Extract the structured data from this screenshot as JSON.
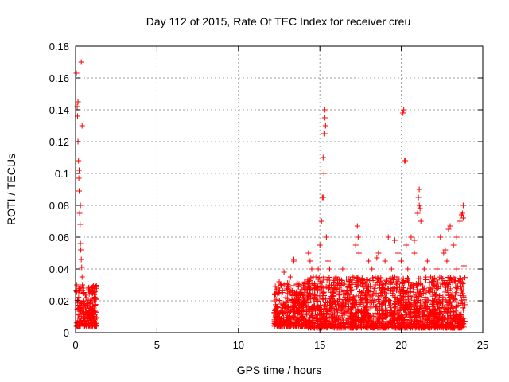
{
  "chart_data": {
    "type": "scatter",
    "title": "Day 112 of 2015, Rate Of TEC Index for receiver creu",
    "xlabel": "GPS time / hours",
    "ylabel": "ROTI / TECUs",
    "xlim": [
      0,
      25
    ],
    "ylim": [
      0,
      0.18
    ],
    "xticks": [
      "0",
      "5",
      "10",
      "15",
      "20",
      "25"
    ],
    "yticks": [
      "0",
      "0.02",
      "0.04",
      "0.06",
      "0.08",
      "0.1",
      "0.12",
      "0.14",
      "0.16",
      "0.18"
    ],
    "grid": true,
    "marker": "+",
    "color": "#ff0000",
    "series": [
      {
        "x": [
          0.05,
          0.1,
          0.12,
          0.15,
          0.18,
          0.2,
          0.22,
          0.25,
          0.28,
          0.3,
          0.32,
          0.35,
          0.38,
          0.4,
          0.42,
          0.45,
          0.48,
          0.5,
          0.55,
          0.6,
          0.7,
          0.8,
          0.9,
          1.0,
          1.1,
          1.2,
          0.08,
          0.15,
          0.22,
          0.3,
          0.35,
          0.4,
          0.5,
          0.65,
          0.75,
          0.85,
          0.95,
          1.05,
          1.15,
          1.2,
          12.2,
          12.3,
          12.4,
          12.5,
          12.6,
          12.7,
          12.8,
          12.9,
          13.0,
          13.1,
          13.2,
          13.3,
          13.4,
          13.5,
          13.6,
          13.7,
          13.8,
          13.9,
          14.0,
          14.1,
          12.5,
          12.8,
          13.1,
          13.4,
          13.7,
          14.0,
          14.3,
          14.4,
          14.5,
          14.6,
          14.7,
          14.8,
          14.9,
          15.0,
          15.1,
          15.15,
          15.2,
          15.25,
          15.3,
          15.35,
          15.4,
          15.5,
          15.6,
          15.7,
          15.8,
          15.9,
          16.0,
          16.2,
          16.4,
          16.6,
          16.8,
          17.0,
          17.2,
          17.3,
          17.4,
          17.6,
          17.8,
          18.0,
          18.2,
          18.4,
          18.6,
          18.8,
          19.0,
          19.2,
          19.4,
          19.6,
          19.8,
          20.0,
          20.1,
          20.2,
          20.3,
          20.4,
          20.6,
          20.8,
          21.0,
          21.1,
          21.2,
          21.4,
          21.6,
          21.8,
          22.0,
          22.2,
          22.4,
          22.6,
          22.8,
          23.0,
          23.2,
          23.4,
          23.6,
          23.8,
          14.5,
          15.0,
          15.5,
          16.0,
          16.5,
          17.0,
          17.5,
          18.0,
          18.5,
          19.0,
          19.5,
          20.0,
          20.5,
          21.0,
          21.5,
          22.0,
          22.5,
          23.0,
          23.5,
          15.2,
          15.25,
          15.3,
          15.3,
          20.15,
          20.25,
          21.05,
          21.1,
          21.15,
          22.9,
          23.4,
          23.7,
          23.75,
          23.8,
          23.85,
          17.35,
          19.6,
          20.8,
          22.7,
          18.5
        ],
        "y": [
          0.163,
          0.142,
          0.136,
          0.12,
          0.108,
          0.097,
          0.089,
          0.075,
          0.068,
          0.056,
          0.052,
          0.046,
          0.041,
          0.035,
          0.03,
          0.028,
          0.025,
          0.02,
          0.018,
          0.016,
          0.013,
          0.012,
          0.011,
          0.01,
          0.012,
          0.014,
          0.03,
          0.145,
          0.102,
          0.08,
          0.17,
          0.13,
          0.025,
          0.022,
          0.018,
          0.012,
          0.009,
          0.015,
          0.02,
          0.008,
          0.02,
          0.015,
          0.01,
          0.025,
          0.018,
          0.012,
          0.03,
          0.022,
          0.016,
          0.028,
          0.035,
          0.02,
          0.045,
          0.018,
          0.012,
          0.015,
          0.025,
          0.01,
          0.022,
          0.008,
          0.032,
          0.038,
          0.027,
          0.046,
          0.02,
          0.03,
          0.05,
          0.045,
          0.04,
          0.035,
          0.03,
          0.028,
          0.04,
          0.055,
          0.07,
          0.085,
          0.11,
          0.125,
          0.14,
          0.13,
          0.06,
          0.045,
          0.04,
          0.03,
          0.025,
          0.02,
          0.035,
          0.028,
          0.04,
          0.025,
          0.03,
          0.035,
          0.055,
          0.067,
          0.05,
          0.03,
          0.025,
          0.045,
          0.04,
          0.035,
          0.05,
          0.03,
          0.045,
          0.06,
          0.04,
          0.035,
          0.05,
          0.045,
          0.138,
          0.108,
          0.055,
          0.04,
          0.06,
          0.05,
          0.075,
          0.09,
          0.07,
          0.04,
          0.045,
          0.035,
          0.03,
          0.04,
          0.06,
          0.05,
          0.045,
          0.067,
          0.055,
          0.04,
          0.07,
          0.08,
          0.01,
          0.008,
          0.012,
          0.009,
          0.011,
          0.007,
          0.013,
          0.01,
          0.008,
          0.012,
          0.009,
          0.011,
          0.007,
          0.01,
          0.008,
          0.012,
          0.009,
          0.01,
          0.006,
          0.085,
          0.1,
          0.135,
          0.125,
          0.14,
          0.108,
          0.085,
          0.08,
          0.078,
          0.065,
          0.06,
          0.074,
          0.075,
          0.072,
          0.042,
          0.06,
          0.058,
          0.058,
          0.052,
          0.047
        ]
      }
    ],
    "dense_regions": [
      {
        "x": [
          0.05,
          1.3
        ],
        "y": [
          0.004,
          0.03
        ]
      },
      {
        "x": [
          12.2,
          14.2
        ],
        "y": [
          0.004,
          0.032
        ]
      },
      {
        "x": [
          14.2,
          23.9
        ],
        "y": [
          0.003,
          0.035
        ]
      }
    ]
  }
}
